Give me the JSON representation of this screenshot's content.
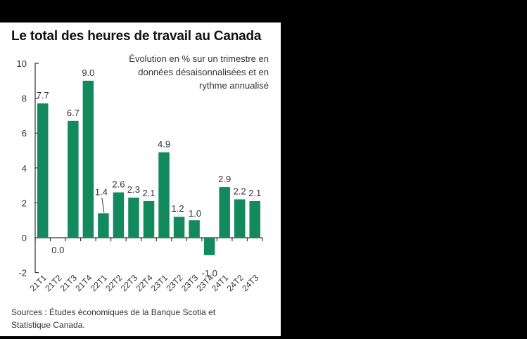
{
  "title": "Le total des heures de travail au Canada",
  "subtitle_lines": [
    "Évolution en % sur un trimestre en",
    "données désaisonnalisées et en",
    "rythme annualisé"
  ],
  "sources_lines": [
    "Sources : Études économiques de la Banque Scotia et",
    "Statistique Canada."
  ],
  "colors": {
    "bar": "#138a5e",
    "axis": "#333333",
    "panel": "#ffffff",
    "background": "#000000"
  },
  "chart_data": {
    "type": "bar",
    "title": "Le total des heures de travail au Canada",
    "subtitle": "Évolution en % sur un trimestre en données désaisonnalisées et en rythme annualisé",
    "categories": [
      "21T1",
      "21T2",
      "21T3",
      "21T4",
      "22T1",
      "22T2",
      "22T3",
      "22T4",
      "23T1",
      "23T2",
      "23T3",
      "23T4",
      "24T1",
      "24T2",
      "24T3"
    ],
    "values": [
      7.7,
      0.0,
      6.7,
      9.0,
      1.4,
      2.6,
      2.3,
      2.1,
      4.9,
      1.2,
      1.0,
      -1.0,
      2.9,
      2.2,
      2.1
    ],
    "data_labels": [
      "7.7",
      "0.0",
      "6.7",
      "9.0",
      "1.4",
      "2.6",
      "2.3",
      "2.1",
      "4.9",
      "1.2",
      "1.0",
      "-1.0",
      "2.9",
      "2.2",
      "2.1"
    ],
    "xlabel": "",
    "ylabel": "",
    "ylim": [
      -2,
      10
    ],
    "yticks": [
      -2,
      0,
      2,
      4,
      6,
      8,
      10
    ],
    "grid": false,
    "legend": null,
    "source": "Sources : Études économiques de la Banque Scotia et Statistique Canada."
  }
}
